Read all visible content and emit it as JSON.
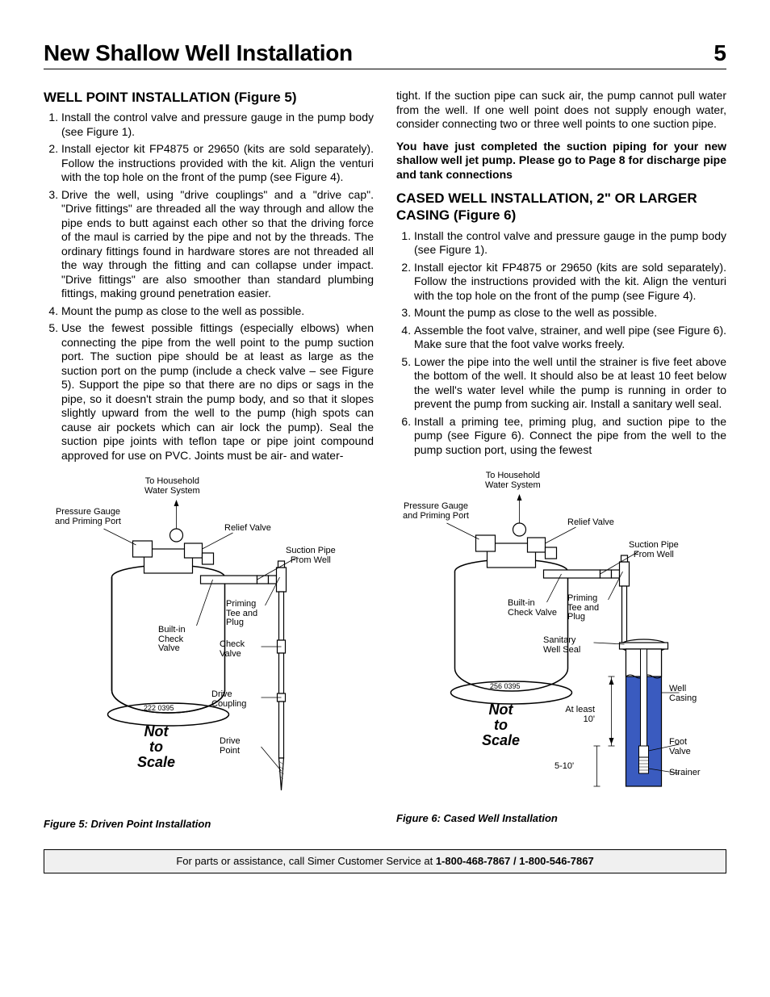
{
  "page": {
    "title": "New Shallow Well Installation",
    "number": "5"
  },
  "left": {
    "heading": "WELL POINT INSTALLATION (Figure 5)",
    "items": [
      "Install the control valve and pressure gauge in the pump body (see Figure 1).",
      "Install ejector kit FP4875 or 29650 (kits are sold separately). Follow the instructions provided with the kit. Align the venturi with the top hole on the front of the pump (see Figure 4).",
      "Drive the well, using \"drive couplings\" and a \"drive cap\". \"Drive fittings\" are threaded all the way through and allow the pipe ends to butt against each other so that the driving force of the maul is carried by the pipe and not by the threads. The ordinary fittings found in hardware stores are not threaded all the way through the fitting and can collapse under impact. \"Drive fittings\" are also smoother than standard plumbing fittings, making ground penetration easier.",
      "Mount the pump as close to the well as possible.",
      "Use the fewest possible fittings (especially elbows) when connecting the pipe from the well point to the pump suction port. The suction pipe should be at least as large as the suction port on the pump (include a check valve – see Figure 5). Support the pipe so that there are no dips or sags in the pipe, so it doesn't strain the pump body, and so that it slopes slightly upward from the well to the pump (high spots can cause air pockets which can air lock the pump). Seal the suction pipe joints with teflon tape or pipe joint compound approved for use on PVC. Joints must be air- and water-"
    ]
  },
  "right": {
    "lead": "tight. If the suction pipe can suck air, the pump cannot pull water from the well. If one well point does not supply enough water, consider connecting two or three well points to one suction pipe.",
    "bold": "You have just completed the suction piping for your new shallow well jet pump. Please go to Page 8 for discharge pipe and tank connections",
    "heading": "CASED WELL INSTALLATION, 2\" OR LARGER CASING (Figure 6)",
    "items": [
      "Install the control valve and pressure gauge in the pump body (see Figure 1).",
      "Install ejector kit FP4875 or 29650 (kits are sold separately). Follow the instructions provided with the kit. Align the venturi with the top hole on the front of the pump (see Figure 4).",
      "Mount the pump as close to the well as possible.",
      "Assemble the foot valve, strainer, and well pipe (see Figure 6). Make sure that the foot valve works freely.",
      "Lower the pipe into the well until the strainer is five feet above the bottom of the well. It should also be at least 10 feet below the well's water level while the pump is running in order to prevent the pump from sucking air. Install a sanitary well seal.",
      "Install a priming tee, priming plug, and suction pipe to the pump (see Figure 6). Connect the pipe from the well to the pump suction port, using the fewest"
    ]
  },
  "fig5": {
    "caption": "Figure 5: Driven Point Installation",
    "labels": {
      "household": "To Household\nWater System",
      "gauge": "Pressure Gauge\nand Priming Port",
      "relief": "Relief Valve",
      "suction": "Suction Pipe\nFrom Well",
      "builtin": "Built-in\nCheck\nValve",
      "priming": "Priming\nTee and\nPlug",
      "check": "Check\nValve",
      "coupling": "Drive\nCoupling",
      "point": "Drive\nPoint",
      "code": "222 0395",
      "nts": "Not\nto\nScale"
    }
  },
  "fig6": {
    "caption": "Figure 6: Cased Well Installation",
    "labels": {
      "household": "To Household\nWater System",
      "gauge": "Pressure Gauge\nand Priming Port",
      "relief": "Relief Valve",
      "suction": "Suction Pipe\nFrom Well",
      "builtin": "Built-in\nCheck Valve",
      "priming": "Priming\nTee and\nPlug",
      "sanitary": "Sanitary\nWell Seal",
      "casing": "Well\nCasing",
      "foot": "Foot\nValve",
      "strainer": "Strainer",
      "atleast": "At least\n10'",
      "range": "5-10'",
      "code": "256 0395",
      "nts": "Not\nto\nScale"
    }
  },
  "footer": {
    "text_a": "For parts or assistance, call Simer Customer Service at ",
    "text_b": "1-800-468-7867 / 1-800-546-7867"
  },
  "style": {
    "body_bg": "#ffffff",
    "text_color": "#000000",
    "footer_bg": "#f0f0f0",
    "casing_fill": "#3a5bbf"
  }
}
